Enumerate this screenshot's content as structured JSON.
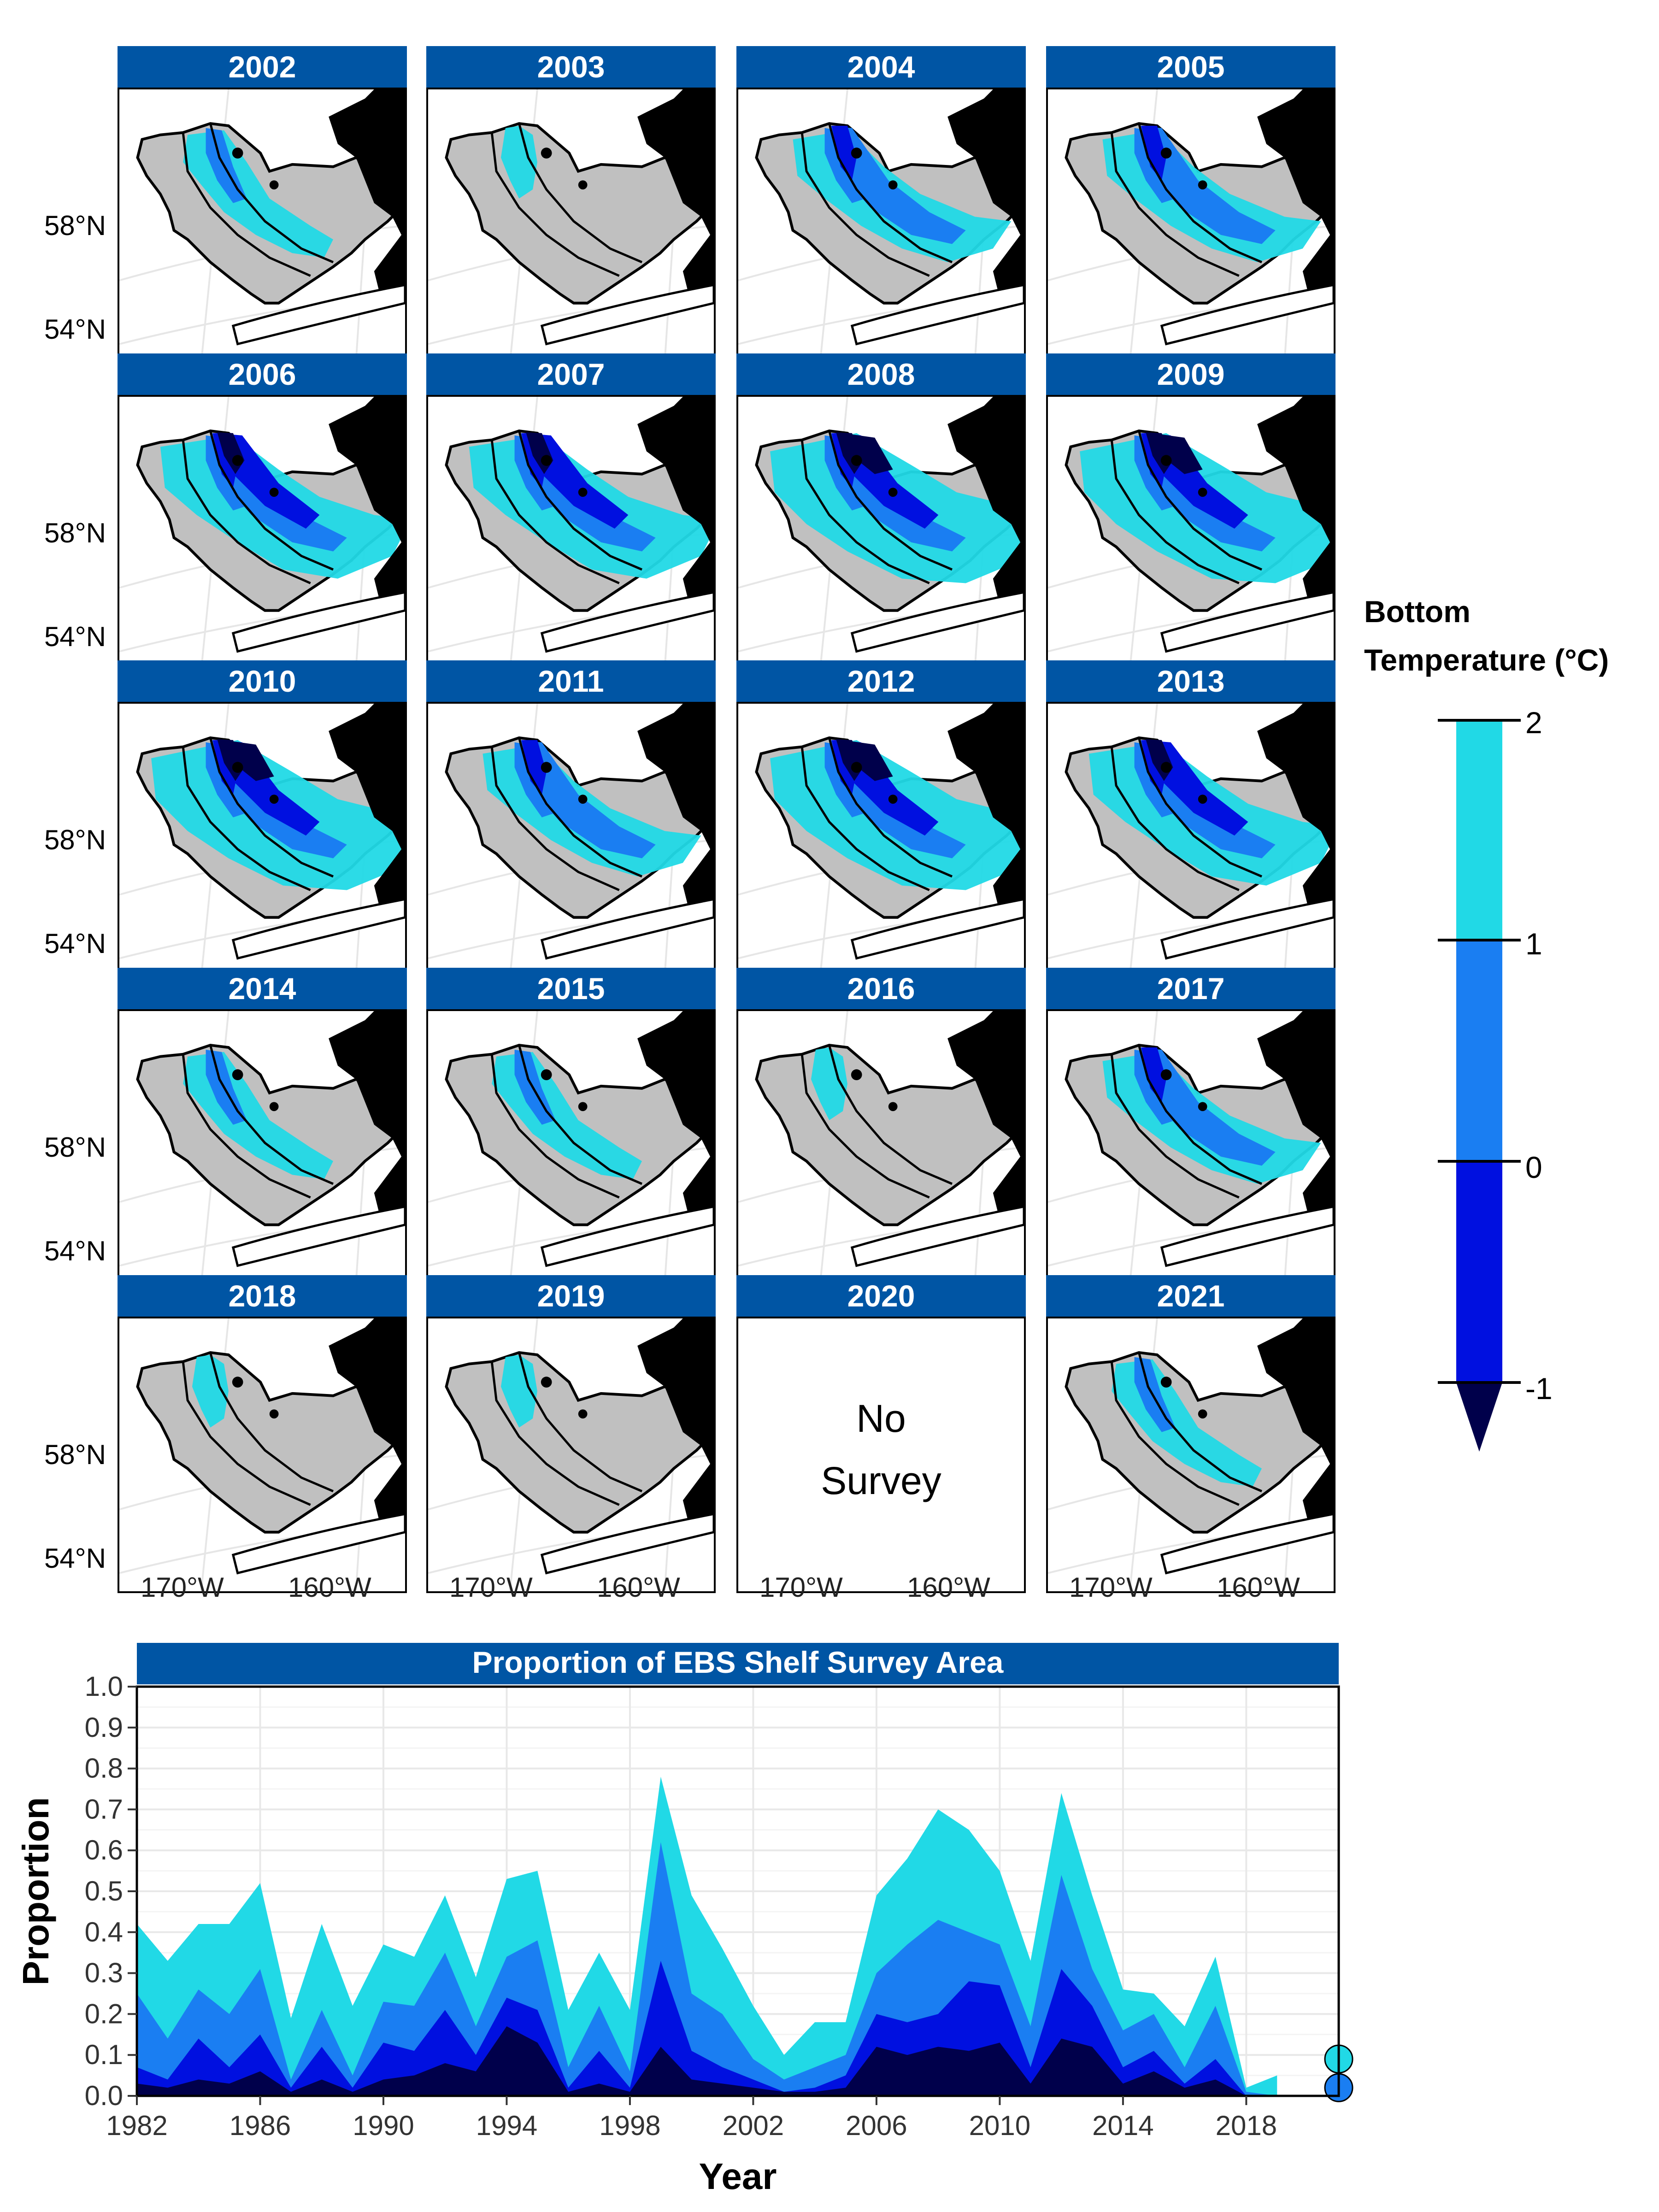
{
  "chart_data": [
    {
      "type": "heatmap",
      "description_panels": [
        "2002",
        "2003",
        "2004",
        "2005",
        "2006",
        "2007",
        "2008",
        "2009",
        "2010",
        "2011",
        "2012",
        "2013",
        "2014",
        "2015",
        "2016",
        "2017",
        "2018",
        "2019",
        "2020",
        "2021"
      ],
      "panels": [
        {
          "year": "2002",
          "survey": true,
          "cold_level": 1
        },
        {
          "year": "2003",
          "survey": true,
          "cold_level": 0
        },
        {
          "year": "2004",
          "survey": true,
          "cold_level": 2
        },
        {
          "year": "2005",
          "survey": true,
          "cold_level": 2
        },
        {
          "year": "2006",
          "survey": true,
          "cold_level": 3
        },
        {
          "year": "2007",
          "survey": true,
          "cold_level": 3
        },
        {
          "year": "2008",
          "survey": true,
          "cold_level": 4
        },
        {
          "year": "2009",
          "survey": true,
          "cold_level": 4
        },
        {
          "year": "2010",
          "survey": true,
          "cold_level": 4
        },
        {
          "year": "2011",
          "survey": true,
          "cold_level": 2
        },
        {
          "year": "2012",
          "survey": true,
          "cold_level": 4
        },
        {
          "year": "2013",
          "survey": true,
          "cold_level": 3
        },
        {
          "year": "2014",
          "survey": true,
          "cold_level": 1
        },
        {
          "year": "2015",
          "survey": true,
          "cold_level": 1
        },
        {
          "year": "2016",
          "survey": true,
          "cold_level": 0
        },
        {
          "year": "2017",
          "survey": true,
          "cold_level": 2
        },
        {
          "year": "2018",
          "survey": true,
          "cold_level": 0
        },
        {
          "year": "2019",
          "survey": true,
          "cold_level": 0
        },
        {
          "year": "2020",
          "survey": false,
          "cold_level": 0
        },
        {
          "year": "2021",
          "survey": true,
          "cold_level": 1
        }
      ],
      "no_survey_text": [
        "No",
        "Survey"
      ],
      "lat_labels": [
        "58°N",
        "54°N"
      ],
      "lon_labels": [
        "170°W",
        "160°W"
      ],
      "legend": {
        "title_line1": "Bottom",
        "title_line2": "Temperature (°C)",
        "ticks": [
          "2",
          "1",
          "0",
          "-1"
        ],
        "colors": [
          "#21d9e6",
          "#1a7ef2",
          "#0010e0",
          "#00004b"
        ]
      },
      "colors": {
        "strip": "#0055a4",
        "land": "#000000",
        "shelf": "#c0c0c0"
      }
    },
    {
      "type": "area",
      "title": "Proportion of EBS Shelf Survey Area",
      "xlabel": "Year",
      "ylabel": "Proportion",
      "xlim": [
        1982,
        2021
      ],
      "ylim": [
        0,
        1
      ],
      "x_ticks": [
        "1982",
        "1986",
        "1990",
        "1994",
        "1998",
        "2002",
        "2006",
        "2010",
        "2014",
        "2018"
      ],
      "y_ticks": [
        "0.0",
        "0.1",
        "0.2",
        "0.3",
        "0.4",
        "0.5",
        "0.6",
        "0.7",
        "0.8",
        "0.9",
        "1.0"
      ],
      "grid": true,
      "x": [
        1982,
        1983,
        1984,
        1985,
        1986,
        1987,
        1988,
        1989,
        1990,
        1991,
        1992,
        1993,
        1994,
        1995,
        1996,
        1997,
        1998,
        1999,
        2000,
        2001,
        2002,
        2003,
        2004,
        2005,
        2006,
        2007,
        2008,
        2009,
        2010,
        2011,
        2012,
        2013,
        2014,
        2015,
        2016,
        2017,
        2018,
        2019
      ],
      "series": [
        {
          "color": "#21d9e6",
          "values": [
            0.42,
            0.33,
            0.42,
            0.42,
            0.52,
            0.19,
            0.42,
            0.22,
            0.37,
            0.34,
            0.49,
            0.29,
            0.53,
            0.55,
            0.21,
            0.35,
            0.21,
            0.78,
            0.49,
            0.36,
            0.22,
            0.1,
            0.18,
            0.18,
            0.49,
            0.58,
            0.7,
            0.65,
            0.55,
            0.33,
            0.74,
            0.49,
            0.26,
            0.25,
            0.17,
            0.34,
            0.02,
            0.05
          ]
        },
        {
          "color": "#1a7ef2",
          "values": [
            0.25,
            0.14,
            0.26,
            0.2,
            0.31,
            0.04,
            0.21,
            0.05,
            0.23,
            0.22,
            0.35,
            0.17,
            0.34,
            0.38,
            0.07,
            0.22,
            0.06,
            0.62,
            0.25,
            0.2,
            0.09,
            0.04,
            0.07,
            0.1,
            0.3,
            0.37,
            0.43,
            0.4,
            0.37,
            0.17,
            0.54,
            0.31,
            0.16,
            0.2,
            0.07,
            0.22,
            0.01,
            0.0
          ]
        },
        {
          "color": "#0010e0",
          "values": [
            0.07,
            0.04,
            0.14,
            0.07,
            0.15,
            0.02,
            0.12,
            0.02,
            0.13,
            0.11,
            0.21,
            0.1,
            0.24,
            0.21,
            0.02,
            0.11,
            0.02,
            0.33,
            0.11,
            0.07,
            0.04,
            0.01,
            0.02,
            0.05,
            0.2,
            0.18,
            0.2,
            0.28,
            0.27,
            0.07,
            0.31,
            0.22,
            0.07,
            0.11,
            0.03,
            0.09,
            0.0,
            0.0
          ]
        },
        {
          "color": "#00004b",
          "values": [
            0.03,
            0.02,
            0.04,
            0.03,
            0.06,
            0.01,
            0.04,
            0.01,
            0.04,
            0.05,
            0.08,
            0.06,
            0.17,
            0.13,
            0.01,
            0.03,
            0.01,
            0.12,
            0.04,
            0.03,
            0.02,
            0.01,
            0.01,
            0.02,
            0.12,
            0.1,
            0.12,
            0.11,
            0.13,
            0.03,
            0.14,
            0.12,
            0.03,
            0.06,
            0.02,
            0.04,
            0.0,
            0.0
          ]
        }
      ],
      "points_2021": [
        {
          "x": 2021,
          "y": 0.09,
          "color": "#21d9e6"
        },
        {
          "x": 2021,
          "y": 0.02,
          "color": "#1a7ef2"
        }
      ]
    }
  ]
}
